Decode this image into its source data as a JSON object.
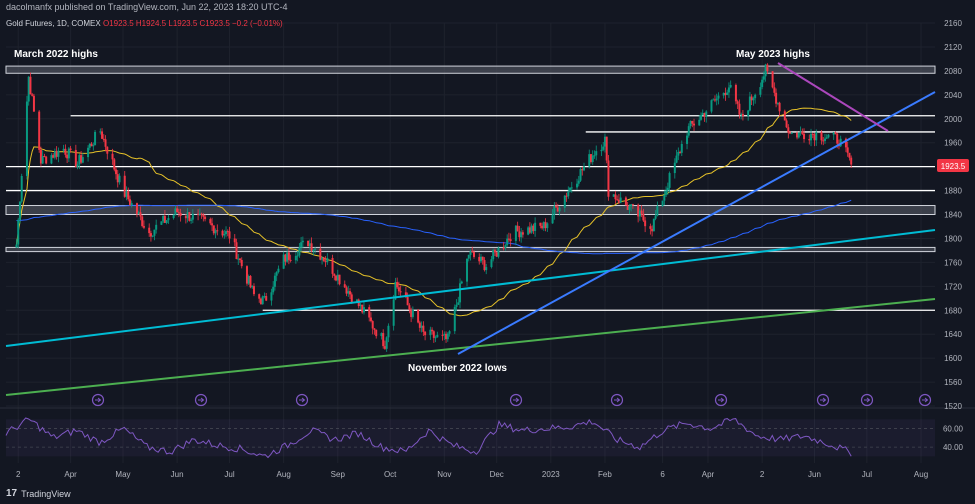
{
  "header": {
    "publisher": "dacolmanfx published on TradingView.com, Jun 22, 2023 18:20 UTC-4",
    "symbol": "Gold Futures, 1D, COMEX",
    "o_label": "O",
    "o_value": "1923.5",
    "h_label": "H",
    "h_value": "1924.5",
    "l_label": "L",
    "l_value": "1923.5",
    "c_label": "C",
    "c_value": "1923.5",
    "change": "−0.2 (−0.01%)"
  },
  "footer": {
    "logo_text": "TradingView",
    "logo_mark": "17"
  },
  "colors": {
    "background": "#131722",
    "up": "#089981",
    "down": "#f23645",
    "ma_short": "#e6c229",
    "ma_long": "#2962ff",
    "trend_blue": "#3a7bff",
    "trend_cyan": "#00bcd4",
    "trend_green": "#4caf50",
    "trend_purple": "#ab47bc",
    "rsi": "#7e57c2",
    "price_tag": "#f23645"
  },
  "chart_data": [
    {
      "type": "candlestick",
      "title": "Gold Futures, 1D, COMEX",
      "x_ticks": [
        "2",
        "Apr",
        "May",
        "Jun",
        "Jul",
        "Aug",
        "Sep",
        "Oct",
        "Nov",
        "Dec",
        "2023",
        "Feb",
        "6",
        "Apr",
        "2",
        "Jun",
        "Jul",
        "Aug"
      ],
      "y_ticks": [
        2160,
        2120,
        2080,
        2040,
        2000,
        1960,
        1920,
        1880,
        1840,
        1800,
        1760,
        1720,
        1680,
        1640,
        1600,
        1560,
        1520
      ],
      "ylim": [
        1520,
        2160
      ],
      "last_price": "1923.5",
      "price_path": [
        [
          "2022-03-01",
          1790
        ],
        [
          "2022-03-08",
          2070
        ],
        [
          "2022-03-15",
          1930
        ],
        [
          "2022-03-28",
          1950
        ],
        [
          "2022-04-05",
          1925
        ],
        [
          "2022-04-18",
          1980
        ],
        [
          "2022-05-01",
          1880
        ],
        [
          "2022-05-16",
          1810
        ],
        [
          "2022-06-01",
          1845
        ],
        [
          "2022-06-15",
          1830
        ],
        [
          "2022-07-01",
          1805
        ],
        [
          "2022-07-15",
          1705
        ],
        [
          "2022-07-21",
          1695
        ],
        [
          "2022-08-01",
          1765
        ],
        [
          "2022-08-15",
          1795
        ],
        [
          "2022-08-25",
          1765
        ],
        [
          "2022-09-15",
          1680
        ],
        [
          "2022-09-28",
          1625
        ],
        [
          "2022-10-04",
          1725
        ],
        [
          "2022-10-20",
          1640
        ],
        [
          "2022-11-03",
          1630
        ],
        [
          "2022-11-15",
          1775
        ],
        [
          "2022-11-25",
          1755
        ],
        [
          "2022-12-10",
          1810
        ],
        [
          "2022-12-28",
          1820
        ],
        [
          "2023-01-26",
          1945
        ],
        [
          "2023-02-01",
          1965
        ],
        [
          "2023-02-03",
          1880
        ],
        [
          "2023-02-28",
          1820
        ],
        [
          "2023-03-20",
          1980
        ],
        [
          "2023-04-13",
          2055
        ],
        [
          "2023-04-20",
          2000
        ],
        [
          "2023-05-04",
          2080
        ],
        [
          "2023-05-18",
          1975
        ],
        [
          "2023-06-02",
          1975
        ],
        [
          "2023-06-15",
          1965
        ],
        [
          "2023-06-22",
          1923.5
        ]
      ],
      "horizontal_levels": [
        {
          "name": "March 2022 highs zone",
          "low": 2076,
          "high": 2088
        },
        {
          "name": "level-2005",
          "value": 2005
        },
        {
          "name": "level-1978",
          "value": 1978
        },
        {
          "name": "level-1920",
          "value": 1920
        },
        {
          "name": "level-1880",
          "value": 1880
        },
        {
          "name": "zone-1840-1855",
          "low": 1840,
          "high": 1855
        },
        {
          "name": "zone-1778-1785",
          "low": 1778,
          "high": 1785
        },
        {
          "name": "level-1680",
          "value": 1680
        }
      ],
      "annotations": [
        "March 2022 highs",
        "May 2023 highs",
        "November 2022 lows"
      ]
    },
    {
      "type": "line",
      "name": "RSI",
      "y_ticks": [
        60.0,
        40.0
      ],
      "values": [
        55,
        70,
        50,
        58,
        45,
        60,
        40,
        35,
        48,
        42,
        38,
        30,
        42,
        58,
        48,
        55,
        40,
        35,
        58,
        42,
        35,
        64,
        58,
        60,
        62,
        68,
        48,
        40,
        58,
        66,
        60,
        70,
        52,
        48,
        52,
        44,
        34
      ]
    }
  ]
}
